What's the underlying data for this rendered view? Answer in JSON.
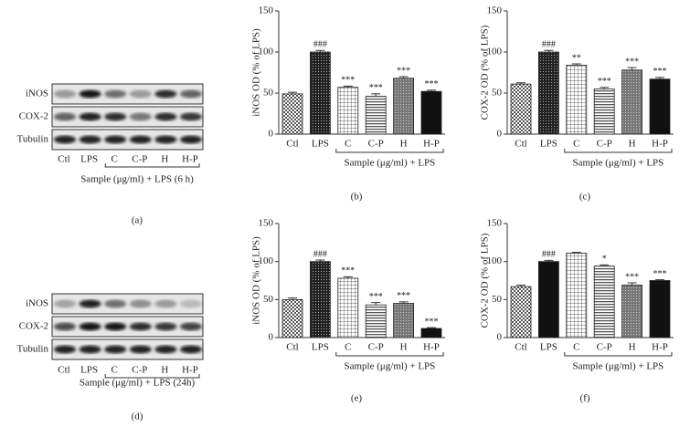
{
  "blots": [
    {
      "panel": "(a)",
      "rows": [
        "iNOS",
        "COX-2",
        "Tubulin"
      ],
      "lanes": [
        "Ctl",
        "LPS",
        "C",
        "C-P",
        "H",
        "H-P"
      ],
      "bracket": {
        "label": "Sample (μg/ml) + LPS (6 h)",
        "from": 2,
        "to": 5
      }
    },
    {
      "panel": "(d)",
      "rows": [
        "iNOS",
        "COX-2",
        "Tubulin"
      ],
      "lanes": [
        "Ctl",
        "LPS",
        "C",
        "C-P",
        "H",
        "H-P"
      ],
      "bracket": {
        "label": "Sample (μg/ml) + LPS (24h)",
        "from": 2,
        "to": 5
      }
    }
  ],
  "chart_data": [
    {
      "type": "bar",
      "panel": "(b)",
      "ylabel": "iNOS OD (% of LPS)",
      "categories": [
        "Ctl",
        "LPS",
        "C",
        "C-P",
        "H",
        "H-P"
      ],
      "values": [
        49,
        100,
        57,
        46,
        68,
        52
      ],
      "errors": [
        2,
        2,
        1.5,
        3,
        2,
        1.5
      ],
      "annotations": [
        null,
        "###",
        "***",
        "***",
        "***",
        "***"
      ],
      "patterns": [
        "check",
        "dense",
        "grid",
        "hstripe",
        "dots",
        "solid"
      ],
      "bracket": {
        "label": "Sample (μg/ml) + LPS",
        "from": 2,
        "to": 5
      },
      "ylim": [
        0,
        150
      ],
      "yticks": [
        0,
        50,
        100,
        150
      ]
    },
    {
      "type": "bar",
      "panel": "(c)",
      "ylabel": "COX-2 OD (% of LPS)",
      "categories": [
        "Ctl",
        "LPS",
        "C",
        "C-P",
        "H",
        "H-P"
      ],
      "values": [
        61,
        100,
        84,
        55,
        78,
        67
      ],
      "errors": [
        1.5,
        2,
        1.5,
        2,
        3,
        2
      ],
      "annotations": [
        null,
        "###",
        "**",
        "***",
        "***",
        "***"
      ],
      "patterns": [
        "check",
        "dense",
        "grid",
        "hstripe",
        "dots",
        "solid"
      ],
      "bracket": {
        "label": "Sample (μg/ml) + LPS",
        "from": 2,
        "to": 5
      },
      "ylim": [
        0,
        150
      ],
      "yticks": [
        0,
        50,
        100,
        150
      ]
    },
    {
      "type": "bar",
      "panel": "(e)",
      "ylabel": "iNOS OD (% of LPS)",
      "categories": [
        "Ctl",
        "LPS",
        "C",
        "C-P",
        "H",
        "H-P"
      ],
      "values": [
        50,
        100,
        78,
        43,
        45,
        12
      ],
      "errors": [
        2,
        2,
        2,
        3,
        2,
        1
      ],
      "annotations": [
        null,
        "###",
        "***",
        "***",
        "***",
        "***"
      ],
      "patterns": [
        "check",
        "dense",
        "grid",
        "hstripe",
        "dots",
        "solid"
      ],
      "bracket": {
        "label": "Sample (μg/ml) + LPS",
        "from": 2,
        "to": 5
      },
      "ylim": [
        0,
        150
      ],
      "yticks": [
        0,
        50,
        100,
        150
      ]
    },
    {
      "type": "bar",
      "panel": "(f)",
      "ylabel": "COX-2 OD (% of LPS)",
      "categories": [
        "Ctl",
        "LPS",
        "C",
        "C-P",
        "H",
        "H-P"
      ],
      "values": [
        67,
        100,
        111,
        94,
        69,
        75
      ],
      "errors": [
        2,
        1.5,
        1,
        1.5,
        3,
        1
      ],
      "annotations": [
        null,
        "###",
        null,
        "*",
        "***",
        "***"
      ],
      "patterns": [
        "check",
        "solid",
        "grid",
        "hstripe",
        "dots",
        "solid"
      ],
      "bracket": {
        "label": "Sample (μg/ml) + LPS",
        "from": 2,
        "to": 5
      },
      "ylim": [
        0,
        150
      ],
      "yticks": [
        0,
        50,
        100,
        150
      ]
    }
  ]
}
